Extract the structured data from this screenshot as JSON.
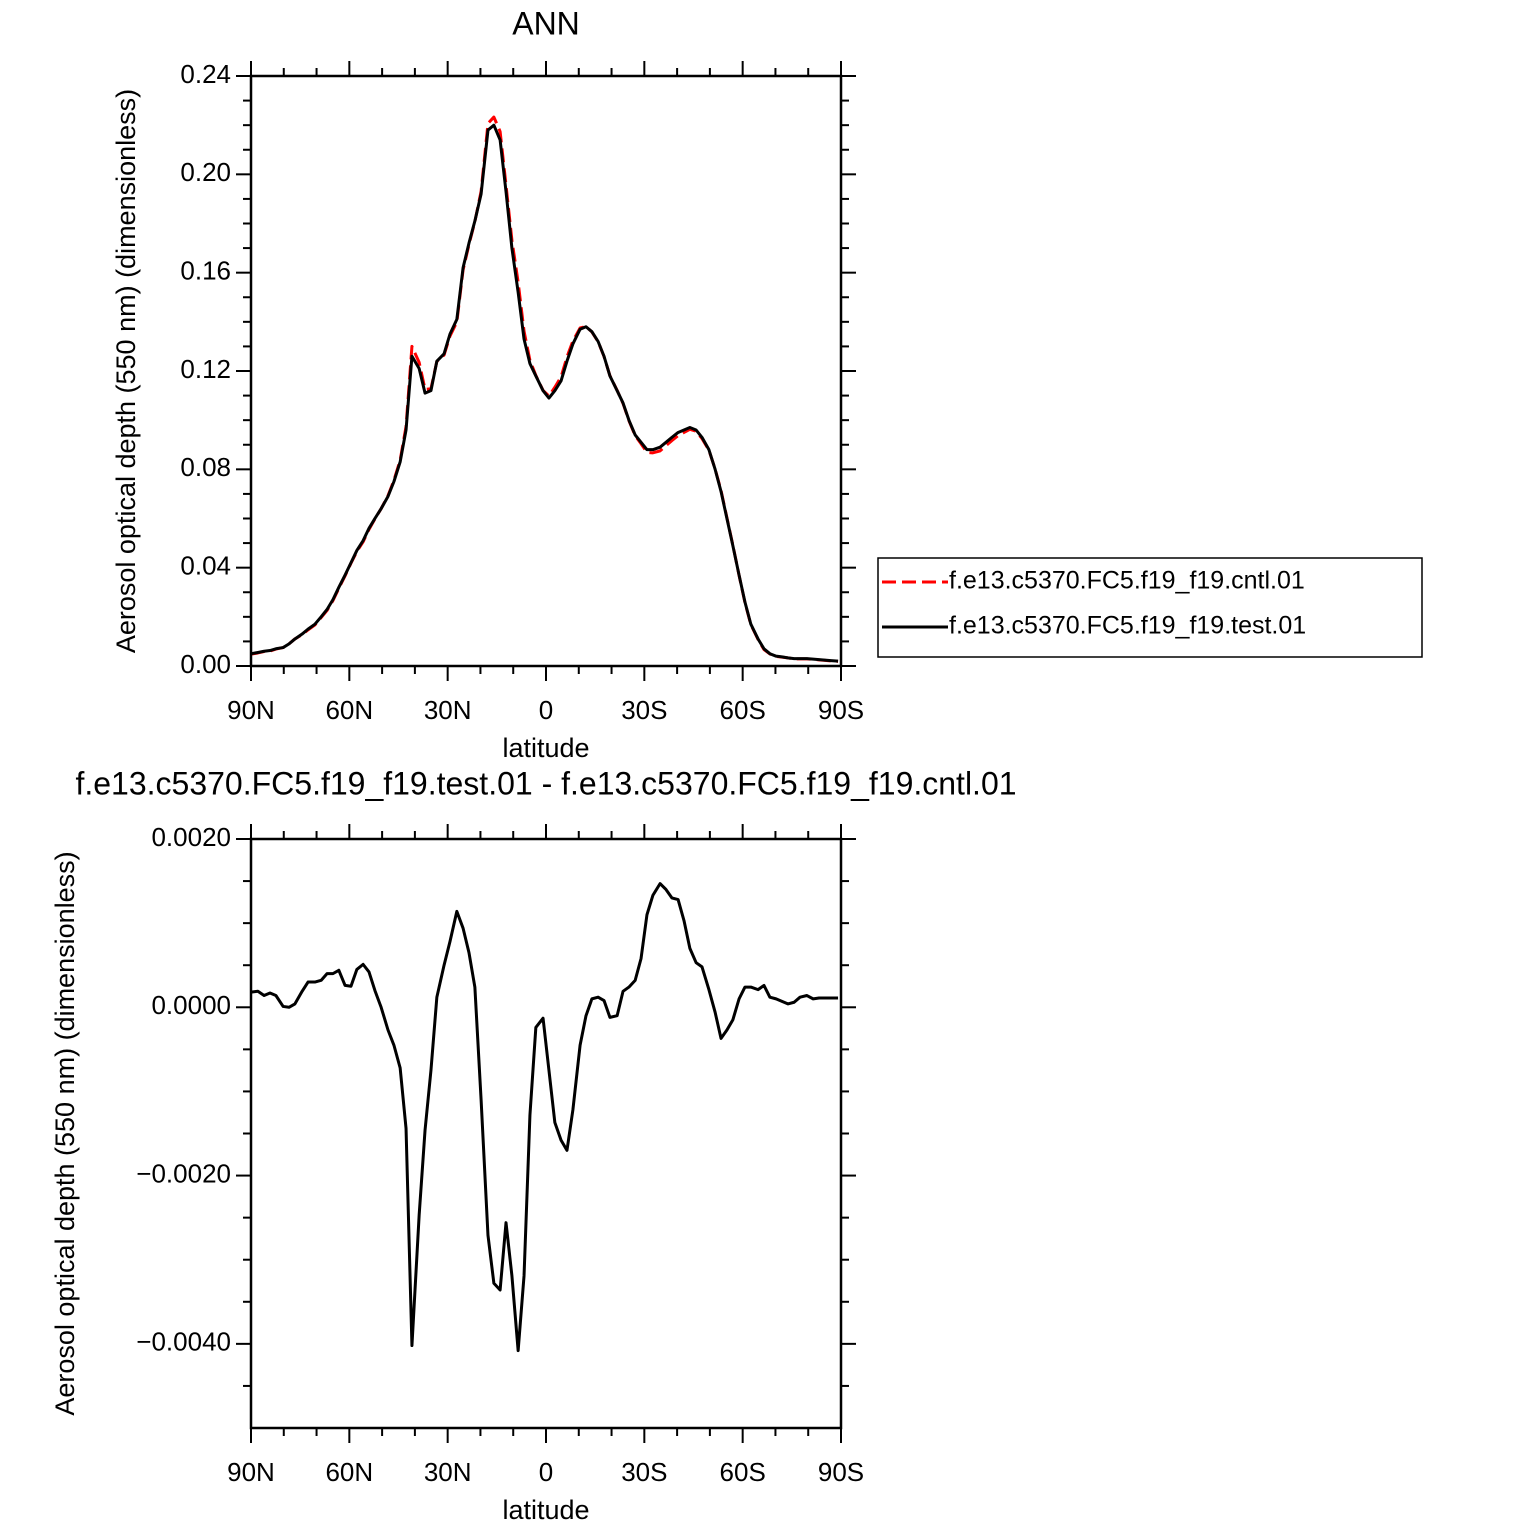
{
  "chart_data": [
    {
      "type": "line",
      "title": "ANN",
      "xlabel": "latitude",
      "ylabel": "Aerosol optical depth (550 nm) (dimensionless)",
      "x": [
        90,
        87.9,
        86.0,
        84.2,
        82.4,
        80.2,
        78.4,
        76.6,
        74.4,
        72.6,
        70.5,
        68.6,
        66.8,
        65.0,
        63.2,
        61.3,
        59.5,
        57.7,
        55.8,
        54.0,
        52.2,
        50.3,
        48.2,
        46.4,
        44.5,
        42.7,
        40.9,
        38.7,
        36.9,
        35.1,
        33.3,
        31.1,
        29.3,
        27.2,
        25.3,
        23.5,
        21.7,
        19.8,
        17.7,
        15.9,
        14.0,
        12.2,
        10.4,
        8.5,
        6.7,
        4.9,
        3.1,
        0.9,
        -0.9,
        -2.7,
        -4.6,
        -6.4,
        -8.2,
        -10.4,
        -12.2,
        -14.0,
        -15.9,
        -17.7,
        -19.5,
        -21.7,
        -23.5,
        -25.3,
        -27.2,
        -29.0,
        -30.8,
        -32.6,
        -34.8,
        -36.6,
        -38.4,
        -40.3,
        -42.1,
        -43.9,
        -45.8,
        -47.6,
        -49.7,
        -51.6,
        -53.4,
        -55.2,
        -57.0,
        -58.9,
        -60.7,
        -62.5,
        -64.7,
        -66.5,
        -68.3,
        -70.2,
        -72.0,
        -73.8,
        -75.7,
        -77.5,
        -79.6,
        -81.5,
        -83.3,
        -85.1,
        -86.9,
        -89.1
      ],
      "xlim": [
        90,
        -90
      ],
      "xticks": [
        {
          "value": 90,
          "label": "90N"
        },
        {
          "value": 60,
          "label": "60N"
        },
        {
          "value": 30,
          "label": "30N"
        },
        0,
        {
          "value": -30,
          "label": "30S"
        },
        {
          "value": -60,
          "label": "60S"
        },
        {
          "value": -90,
          "label": "90S"
        }
      ],
      "xminorticks": [
        80,
        70,
        50,
        40,
        20,
        10,
        -10,
        -20,
        -40,
        -50,
        -70,
        -80
      ],
      "ylim": [
        0,
        0.24
      ],
      "yticks": [
        {
          "value": 0,
          "label": "0.00"
        },
        0.04,
        0.08,
        0.12,
        0.16,
        {
          "value": 0.2,
          "label": "0.20"
        },
        0.24
      ],
      "yminorticks": [
        0.01,
        0.02,
        0.03,
        0.05,
        0.06,
        0.07,
        0.09,
        0.1,
        0.11,
        0.13,
        0.14,
        0.15,
        0.17,
        0.18,
        0.19,
        0.21,
        0.22,
        0.23
      ],
      "legend": "right",
      "series": [
        {
          "name": "f.e13.c5370.FC5.f19_f19.cntl.01",
          "color": "#ff0000",
          "linestyle": "dashed",
          "values": [
            0.0048,
            0.0053,
            0.0059,
            0.0061,
            0.0069,
            0.0075,
            0.009,
            0.011,
            0.0128,
            0.0147,
            0.0167,
            0.0197,
            0.0226,
            0.0266,
            0.0316,
            0.0367,
            0.0418,
            0.0466,
            0.0505,
            0.0556,
            0.0598,
            0.064,
            0.0693,
            0.0755,
            0.0837,
            0.0974,
            0.13,
            0.1235,
            0.1125,
            0.1128,
            0.1239,
            0.1265,
            0.1342,
            0.1399,
            0.1611,
            0.1714,
            0.1808,
            0.1931,
            0.2207,
            0.2233,
            0.2174,
            0.1956,
            0.1732,
            0.1561,
            0.1362,
            0.1243,
            0.1182,
            0.1121,
            0.1098,
            0.1134,
            0.1176,
            0.1257,
            0.1322,
            0.1375,
            0.1381,
            0.1359,
            0.1319,
            0.1259,
            0.1181,
            0.1121,
            0.1068,
            0.0998,
            0.0937,
            0.0904,
            0.0869,
            0.0867,
            0.0875,
            0.0896,
            0.0917,
            0.0937,
            0.095,
            0.0963,
            0.0955,
            0.0925,
            0.0878,
            0.0801,
            0.0714,
            0.0603,
            0.0492,
            0.0369,
            0.0258,
            0.0168,
            0.0108,
            0.0067,
            0.0049,
            0.0039,
            0.0036,
            0.0033,
            0.0029,
            0.0029,
            0.0029,
            0.0027,
            0.0025,
            0.0023,
            0.0021,
            0.0019
          ]
        },
        {
          "name": "f.e13.c5370.FC5.f19_f19.test.01",
          "color": "#000000",
          "linestyle": "solid",
          "values": [
            0.005,
            0.0055,
            0.006,
            0.0063,
            0.007,
            0.0075,
            0.009,
            0.011,
            0.013,
            0.015,
            0.017,
            0.02,
            0.023,
            0.027,
            0.032,
            0.037,
            0.042,
            0.047,
            0.051,
            0.056,
            0.06,
            0.064,
            0.069,
            0.075,
            0.083,
            0.096,
            0.126,
            0.121,
            0.111,
            0.112,
            0.124,
            0.127,
            0.135,
            0.141,
            0.162,
            0.172,
            0.181,
            0.192,
            0.218,
            0.22,
            0.214,
            0.193,
            0.17,
            0.152,
            0.133,
            0.123,
            0.118,
            0.112,
            0.109,
            0.112,
            0.116,
            0.124,
            0.131,
            0.137,
            0.138,
            0.136,
            0.132,
            0.126,
            0.118,
            0.112,
            0.107,
            0.1,
            0.094,
            0.091,
            0.088,
            0.088,
            0.089,
            0.091,
            0.093,
            0.095,
            0.096,
            0.097,
            0.096,
            0.093,
            0.088,
            0.08,
            0.071,
            0.06,
            0.049,
            0.037,
            0.026,
            0.017,
            0.011,
            0.007,
            0.005,
            0.004,
            0.0037,
            0.0033,
            0.003,
            0.003,
            0.003,
            0.0028,
            0.0026,
            0.0024,
            0.0022,
            0.002
          ]
        }
      ]
    },
    {
      "type": "line",
      "title": "f.e13.c5370.FC5.f19_f19.test.01 - f.e13.c5370.FC5.f19_f19.cntl.01",
      "xlabel": "latitude",
      "ylabel": "Aerosol optical depth (550 nm) (dimensionless)",
      "x": [
        90,
        87.9,
        86.0,
        84.2,
        82.4,
        80.2,
        78.4,
        76.6,
        74.4,
        72.6,
        70.5,
        68.6,
        66.8,
        65.0,
        63.2,
        61.3,
        59.5,
        57.7,
        55.8,
        54.0,
        52.2,
        50.3,
        48.2,
        46.4,
        44.5,
        42.7,
        40.9,
        38.7,
        36.9,
        35.1,
        33.3,
        31.1,
        29.3,
        27.2,
        25.3,
        23.5,
        21.7,
        19.8,
        17.7,
        15.9,
        14.0,
        12.2,
        10.4,
        8.5,
        6.7,
        4.9,
        3.1,
        0.9,
        -0.9,
        -2.7,
        -4.6,
        -6.4,
        -8.2,
        -10.4,
        -12.2,
        -14.0,
        -15.9,
        -17.7,
        -19.5,
        -21.7,
        -23.5,
        -25.3,
        -27.2,
        -29.0,
        -30.8,
        -32.6,
        -34.8,
        -36.6,
        -38.4,
        -40.3,
        -42.1,
        -43.9,
        -45.8,
        -47.6,
        -49.7,
        -51.6,
        -53.4,
        -55.2,
        -57.0,
        -58.9,
        -60.7,
        -62.5,
        -64.7,
        -66.5,
        -68.3,
        -70.2,
        -72.0,
        -73.8,
        -75.7,
        -77.5,
        -79.6,
        -81.5,
        -83.3,
        -85.1,
        -86.9,
        -89.1
      ],
      "xlim": [
        90,
        -90
      ],
      "xticks": [
        {
          "value": 90,
          "label": "90N"
        },
        {
          "value": 60,
          "label": "60N"
        },
        {
          "value": 30,
          "label": "30N"
        },
        0,
        {
          "value": -30,
          "label": "30S"
        },
        {
          "value": -60,
          "label": "60S"
        },
        {
          "value": -90,
          "label": "90S"
        }
      ],
      "xminorticks": [
        80,
        70,
        50,
        40,
        20,
        10,
        -10,
        -20,
        -40,
        -50,
        -70,
        -80
      ],
      "ylim": [
        -0.005,
        0.002
      ],
      "yticks": [
        {
          "value": -0.004,
          "label": "−0.0040"
        },
        {
          "value": -0.002,
          "label": "−0.0020"
        },
        {
          "value": 0,
          "label": "0.0000"
        },
        {
          "value": 0.002,
          "label": "0.0020"
        }
      ],
      "yminorticks": [
        -0.0045,
        -0.0035,
        -0.003,
        -0.0025,
        -0.0015,
        -0.001,
        -0.0005,
        0.0005,
        0.001,
        0.0015
      ],
      "series": [
        {
          "color": "#000000",
          "linestyle": "solid",
          "values": [
            0.00018,
            0.00019,
            0.00014,
            0.00017,
            0.00014,
            1e-05,
            0,
            4e-05,
            0.00019,
            0.0003,
            0.0003,
            0.00032,
            0.0004,
            0.0004,
            0.00044,
            0.00026,
            0.00025,
            0.00045,
            0.00051,
            0.00042,
            0.0002,
            0,
            -0.00027,
            -0.00045,
            -0.00072,
            -0.00144,
            -0.00402,
            -0.00247,
            -0.00146,
            -0.00075,
            0.00012,
            0.0005,
            0.00078,
            0.00114,
            0.00094,
            0.00065,
            0.00024,
            -0.0011,
            -0.00271,
            -0.00328,
            -0.00336,
            -0.00256,
            -0.00319,
            -0.00408,
            -0.00319,
            -0.00128,
            -0.00024,
            -0.00013,
            -0.00075,
            -0.00137,
            -0.00158,
            -0.0017,
            -0.00122,
            -0.00045,
            -0.0001,
            0.0001,
            0.00012,
            8e-05,
            -0.00012,
            -0.0001,
            0.00019,
            0.00024,
            0.00032,
            0.00058,
            0.0011,
            0.00133,
            0.00147,
            0.0014,
            0.0013,
            0.00128,
            0.00103,
            0.0007,
            0.00053,
            0.00048,
            0.00021,
            -6e-05,
            -0.00037,
            -0.00027,
            -0.00015,
            0.0001,
            0.00024,
            0.00024,
            0.00021,
            0.00026,
            0.00012,
            0.0001,
            7e-05,
            4e-05,
            6e-05,
            0.00012,
            0.00014,
            0.0001,
            0.00011,
            0.00011,
            0.00011,
            0.00011
          ]
        }
      ]
    }
  ]
}
